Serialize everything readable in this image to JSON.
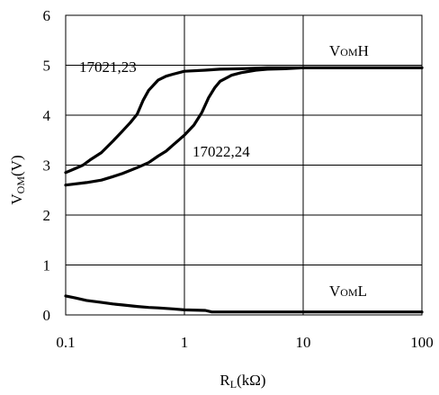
{
  "chart_data": {
    "type": "line",
    "xscale": "log",
    "xlim": [
      0.1,
      100
    ],
    "ylim": [
      0,
      6
    ],
    "grid": true,
    "xticks": [
      "0.1",
      "1",
      "10",
      "100"
    ],
    "yticks": [
      "0",
      "1",
      "2",
      "3",
      "4",
      "5",
      "6"
    ],
    "xlabel": {
      "main": "R",
      "sub": "L",
      "rest": "(kΩ)"
    },
    "ylabel": {
      "main": "V",
      "sub": "OM",
      "rest": "(V)"
    },
    "series": [
      {
        "name": "17021,23",
        "x": [
          0.1,
          0.12,
          0.14,
          0.16,
          0.2,
          0.25,
          0.3,
          0.35,
          0.4,
          0.45,
          0.5,
          0.6,
          0.7,
          0.8,
          1,
          1.5,
          2,
          3,
          5,
          10,
          30,
          100
        ],
        "y": [
          2.85,
          2.93,
          3.0,
          3.1,
          3.25,
          3.48,
          3.68,
          3.85,
          4.02,
          4.3,
          4.5,
          4.7,
          4.78,
          4.82,
          4.88,
          4.9,
          4.92,
          4.93,
          4.95,
          4.95,
          4.95,
          4.95
        ]
      },
      {
        "name": "17022,24",
        "x": [
          0.1,
          0.15,
          0.2,
          0.25,
          0.3,
          0.4,
          0.5,
          0.6,
          0.7,
          0.8,
          1,
          1.2,
          1.4,
          1.6,
          1.8,
          2.0,
          2.5,
          3,
          4,
          5,
          7,
          10,
          30,
          100
        ],
        "y": [
          2.6,
          2.65,
          2.7,
          2.77,
          2.83,
          2.95,
          3.05,
          3.18,
          3.28,
          3.4,
          3.6,
          3.8,
          4.05,
          4.35,
          4.55,
          4.68,
          4.8,
          4.85,
          4.9,
          4.92,
          4.93,
          4.95,
          4.95,
          4.95
        ]
      },
      {
        "name": "VOML",
        "x": [
          0.1,
          0.12,
          0.15,
          0.2,
          0.25,
          0.3,
          0.4,
          0.5,
          0.6,
          0.8,
          1,
          1.5,
          1.7,
          2,
          5,
          10,
          100
        ],
        "y": [
          0.38,
          0.34,
          0.29,
          0.25,
          0.22,
          0.2,
          0.17,
          0.15,
          0.14,
          0.12,
          0.1,
          0.09,
          0.06,
          0.06,
          0.06,
          0.06,
          0.06
        ]
      }
    ],
    "annotations": [
      {
        "key": "a1",
        "main": "17021,23",
        "sub": "",
        "rest": ""
      },
      {
        "key": "a2",
        "main": "17022,24",
        "sub": "",
        "rest": ""
      },
      {
        "key": "a3",
        "main": "V",
        "sub": "OM",
        "rest": "H"
      },
      {
        "key": "a4",
        "main": "V",
        "sub": "OM",
        "rest": "L"
      }
    ]
  }
}
